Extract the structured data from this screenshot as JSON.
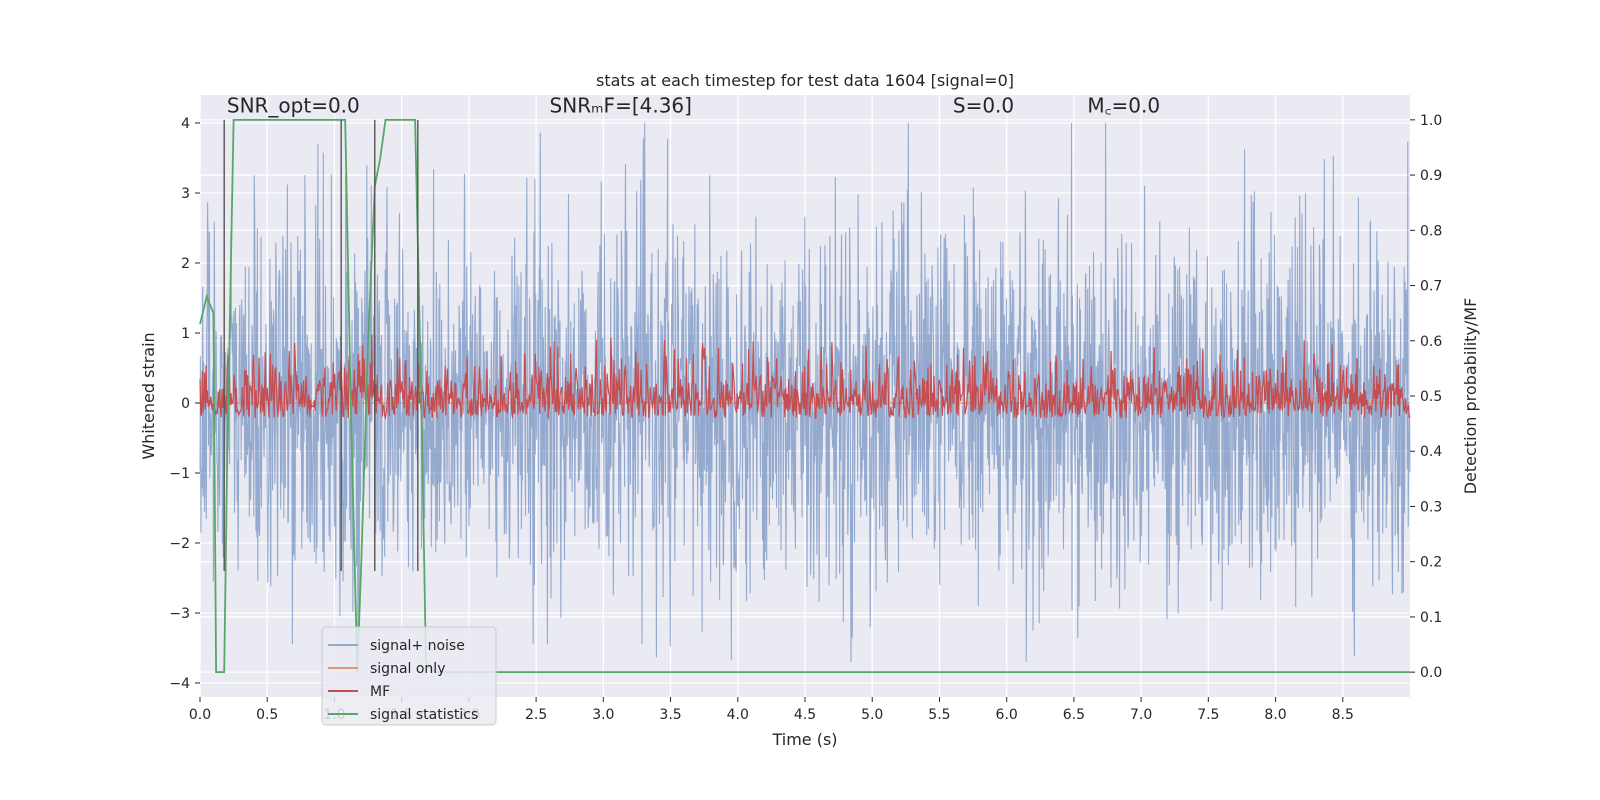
{
  "chart_data": {
    "type": "line",
    "title": "stats at each timestep for test data 1604 [signal=0]",
    "xlabel": "Time (s)",
    "ylabel": "Whitened strain",
    "y2label": "Detection probability/MF",
    "xlim": [
      0.0,
      9.0
    ],
    "ylim": [
      -4.2,
      4.4
    ],
    "y2lim": [
      -0.045,
      1.045
    ],
    "xticks": [
      "0.0",
      "0.5",
      "1.0",
      "1.5",
      "2.0",
      "2.5",
      "3.0",
      "3.5",
      "4.0",
      "4.5",
      "5.0",
      "5.5",
      "6.0",
      "6.5",
      "7.0",
      "7.5",
      "8.0",
      "8.5"
    ],
    "yticks": [
      "−4",
      "−3",
      "−2",
      "−1",
      "0",
      "1",
      "2",
      "3",
      "4"
    ],
    "y2ticks": [
      "0.0",
      "0.1",
      "0.2",
      "0.3",
      "0.4",
      "0.5",
      "0.6",
      "0.7",
      "0.8",
      "0.9",
      "1.0"
    ],
    "grid": true,
    "legend_position": "lower-left",
    "annotations": [
      {
        "text": "SNR_opt=0.0",
        "x": 0.2,
        "y": 4.15
      },
      {
        "text": "SNRₘF=[4.36]",
        "x": 2.6,
        "y": 4.15
      },
      {
        "text": "S=0.0",
        "x": 5.6,
        "y": 4.15
      },
      {
        "text": "M꜀=0.0",
        "x": 6.6,
        "y": 4.15
      }
    ],
    "series": [
      {
        "name": "signal+ noise",
        "color": "#4c72b0",
        "axis": "left",
        "style": "noise",
        "amplitude": 1.3,
        "peak_max": 4.0,
        "peak_min": -3.7,
        "samples": 2700
      },
      {
        "name": "signal only",
        "color": "#dd8452",
        "axis": "left",
        "style": "flat",
        "x": [
          0.0,
          9.0
        ],
        "y": [
          0.0,
          0.0
        ]
      },
      {
        "name": "MF",
        "color": "#c44e52",
        "axis": "right",
        "style": "mf",
        "baseline": 0.5,
        "amplitude": 0.05,
        "peak_max": 0.62,
        "samples": 1600
      },
      {
        "name": "signal statistics",
        "color": "#55a868",
        "axis": "right",
        "style": "line",
        "x": [
          0.0,
          0.05,
          0.1,
          0.12,
          0.18,
          0.2,
          0.25,
          0.3,
          0.5,
          1.0,
          1.08,
          1.12,
          1.17,
          1.2,
          1.25,
          1.3,
          1.34,
          1.38,
          1.45,
          1.6,
          1.65,
          1.68,
          1.7,
          1.75,
          2.0,
          9.0
        ],
        "y": [
          0.63,
          0.68,
          0.65,
          0.0,
          0.0,
          0.35,
          1.0,
          1.0,
          1.0,
          1.0,
          1.0,
          0.5,
          0.0,
          0.2,
          0.6,
          0.88,
          0.93,
          1.0,
          1.0,
          1.0,
          0.45,
          0.02,
          0.01,
          0.0,
          0.0,
          0.0
        ]
      }
    ],
    "vlines": [
      0.18,
      1.05,
      1.3,
      1.62
    ]
  }
}
